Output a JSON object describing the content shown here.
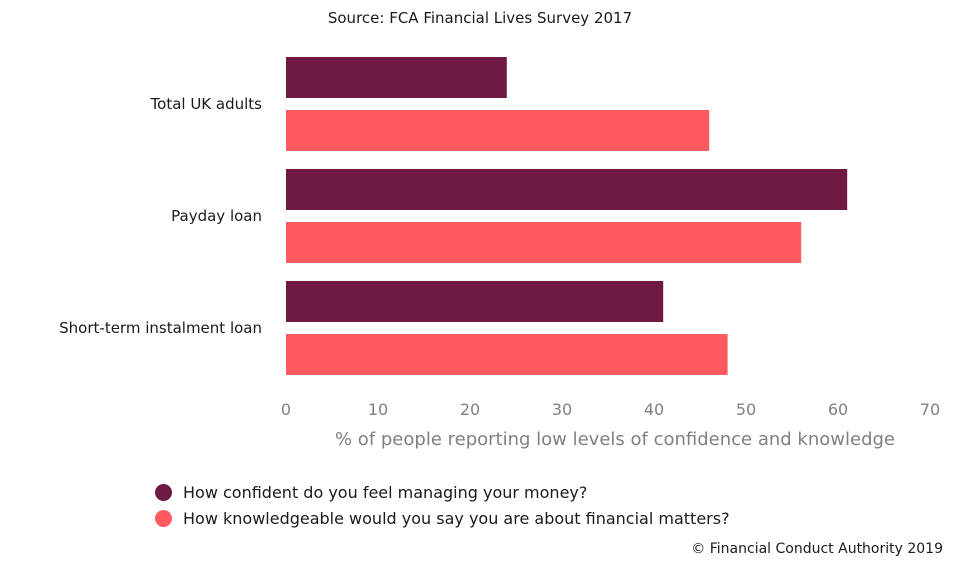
{
  "chart_data": {
    "type": "bar",
    "orientation": "horizontal",
    "subtitle": "Source: FCA Financial Lives Survey 2017",
    "categories": [
      "Total UK adults",
      "Payday loan",
      "Short-term instalment loan"
    ],
    "series": [
      {
        "name": "How confident do you feel managing your money?",
        "color": "#6e1942",
        "values": [
          24,
          61,
          41
        ]
      },
      {
        "name": "How knowledgeable would you say you are about financial matters?",
        "color": "#ff5a5f",
        "values": [
          46,
          56,
          48
        ]
      }
    ],
    "xlabel": "% of people reporting low levels of confidence and knowledge",
    "xlim": [
      0,
      70
    ],
    "xticks": [
      0,
      10,
      20,
      30,
      40,
      50,
      60,
      70
    ],
    "grid": false,
    "legend_position": "bottom"
  },
  "footer": {
    "copyright": "© Financial Conduct Authority 2019"
  }
}
